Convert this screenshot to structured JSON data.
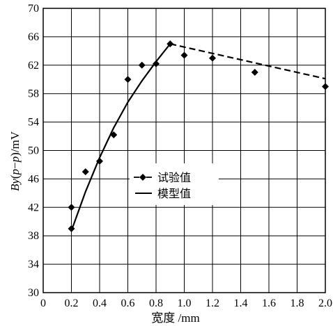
{
  "chart_data": {
    "type": "scatter",
    "xlabel": "宽度 /mm",
    "ylabel": "By(p−p)/mV",
    "xlim": [
      0,
      2.0
    ],
    "ylim": [
      30,
      70
    ],
    "x_ticks": [
      0,
      0.2,
      0.4,
      0.6,
      0.8,
      1.0,
      1.2,
      1.4,
      1.6,
      1.8,
      2.0
    ],
    "x_tick_labels": [
      "0",
      "0.2",
      "0.4",
      "0.6",
      "0.8",
      "1.0",
      "1.2",
      "1.4",
      "1.6",
      "1.8",
      "2.0"
    ],
    "y_ticks": [
      30,
      34,
      38,
      42,
      46,
      50,
      54,
      58,
      62,
      66,
      70
    ],
    "y_tick_labels": [
      "30",
      "34",
      "38",
      "42",
      "46",
      "50",
      "54",
      "58",
      "62",
      "66",
      "70"
    ],
    "grid": true,
    "legend_position": "center",
    "series": [
      {
        "name": "试验值",
        "kind": "points",
        "marker": "diamond",
        "x": [
          0.2,
          0.2,
          0.3,
          0.4,
          0.5,
          0.6,
          0.7,
          0.8,
          0.9,
          1.0,
          1.2,
          1.5,
          2.0
        ],
        "y": [
          42.0,
          39.0,
          47.0,
          48.5,
          52.2,
          60.0,
          62.0,
          62.2,
          65.0,
          63.4,
          63.0,
          61.0,
          59.0
        ]
      },
      {
        "name": "模型值",
        "kind": "line",
        "segments": [
          {
            "style": "solid",
            "x": [
              0.2,
              0.3,
              0.4,
              0.5,
              0.6,
              0.7,
              0.8,
              0.9
            ],
            "y": [
              38.7,
              44.2,
              49.0,
              53.2,
              56.8,
              59.8,
              62.5,
              65.0
            ]
          },
          {
            "style": "dashed",
            "x": [
              0.9,
              2.0
            ],
            "y": [
              65.0,
              60.1
            ]
          }
        ]
      }
    ]
  }
}
